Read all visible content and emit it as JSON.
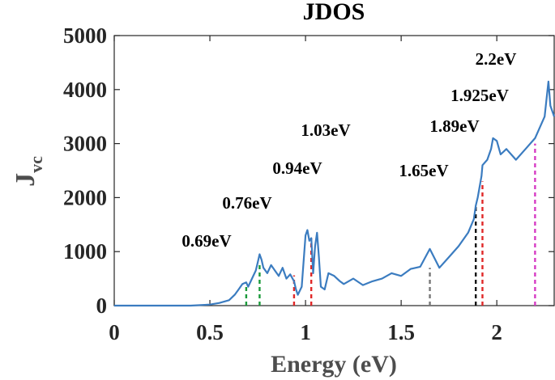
{
  "chart_data": {
    "type": "line",
    "title": "JDOS",
    "xlabel": "Energy (eV)",
    "ylabel_main": "J",
    "ylabel_sub": "vc",
    "xlim": [
      0,
      2.3
    ],
    "ylim": [
      0,
      5000
    ],
    "xticks": [
      0,
      0.5,
      1,
      1.5,
      2
    ],
    "xtick_labels": [
      "0",
      "0.5",
      "1",
      "1.5",
      "2"
    ],
    "yticks": [
      0,
      1000,
      2000,
      3000,
      4000,
      5000
    ],
    "ytick_labels": [
      "0",
      "1000",
      "2000",
      "3000",
      "4000",
      "5000"
    ],
    "grid": false,
    "line_color": "#3b7cc0",
    "series": [
      {
        "x": [
          0,
          0.2,
          0.4,
          0.5,
          0.55,
          0.6,
          0.63,
          0.65,
          0.67,
          0.69,
          0.7,
          0.72,
          0.74,
          0.75,
          0.76,
          0.77,
          0.78,
          0.8,
          0.82,
          0.84,
          0.86,
          0.88,
          0.9,
          0.92,
          0.94,
          0.95,
          0.96,
          0.98,
          1.0,
          1.01,
          1.02,
          1.03,
          1.04,
          1.05,
          1.06,
          1.07,
          1.08,
          1.1,
          1.12,
          1.15,
          1.18,
          1.2,
          1.25,
          1.3,
          1.35,
          1.4,
          1.45,
          1.5,
          1.55,
          1.6,
          1.65,
          1.7,
          1.75,
          1.8,
          1.85,
          1.88,
          1.89,
          1.9,
          1.92,
          1.925,
          1.95,
          1.97,
          1.98,
          2.0,
          2.02,
          2.05,
          2.1,
          2.15,
          2.2,
          2.25,
          2.27,
          2.28,
          2.3
        ],
        "y": [
          0,
          0,
          0,
          20,
          50,
          100,
          200,
          300,
          400,
          430,
          350,
          500,
          650,
          800,
          950,
          850,
          700,
          600,
          750,
          650,
          550,
          700,
          500,
          580,
          450,
          300,
          200,
          350,
          1300,
          1400,
          1200,
          1250,
          600,
          1100,
          1350,
          900,
          350,
          300,
          600,
          550,
          450,
          400,
          500,
          380,
          450,
          500,
          600,
          550,
          680,
          720,
          1050,
          700,
          900,
          1100,
          1350,
          1600,
          1850,
          2000,
          2400,
          2600,
          2700,
          2900,
          3100,
          3050,
          2800,
          2900,
          2700,
          2900,
          3100,
          3500,
          4150,
          3700,
          3500
        ]
      }
    ],
    "annotations": [
      {
        "label": "0.69eV",
        "x": 0.69,
        "y_top": 430,
        "color": "#1a9a3a"
      },
      {
        "label": "0.76eV",
        "x": 0.76,
        "y_top": 800,
        "color": "#1a9a3a"
      },
      {
        "label": "0.94eV",
        "x": 0.94,
        "y_top": 560,
        "color": "#e02828"
      },
      {
        "label": "1.03eV",
        "x": 1.03,
        "y_top": 1250,
        "color": "#e02828"
      },
      {
        "label": "1.65eV",
        "x": 1.65,
        "y_top": 700,
        "color": "#777777"
      },
      {
        "label": "1.89eV",
        "x": 1.89,
        "y_top": 1850,
        "color": "#111111"
      },
      {
        "label": "1.925eV",
        "x": 1.925,
        "y_top": 2300,
        "color": "#e02828"
      },
      {
        "label": "2.2eV",
        "x": 2.2,
        "y_top": 3000,
        "color": "#d63cc4"
      }
    ]
  }
}
